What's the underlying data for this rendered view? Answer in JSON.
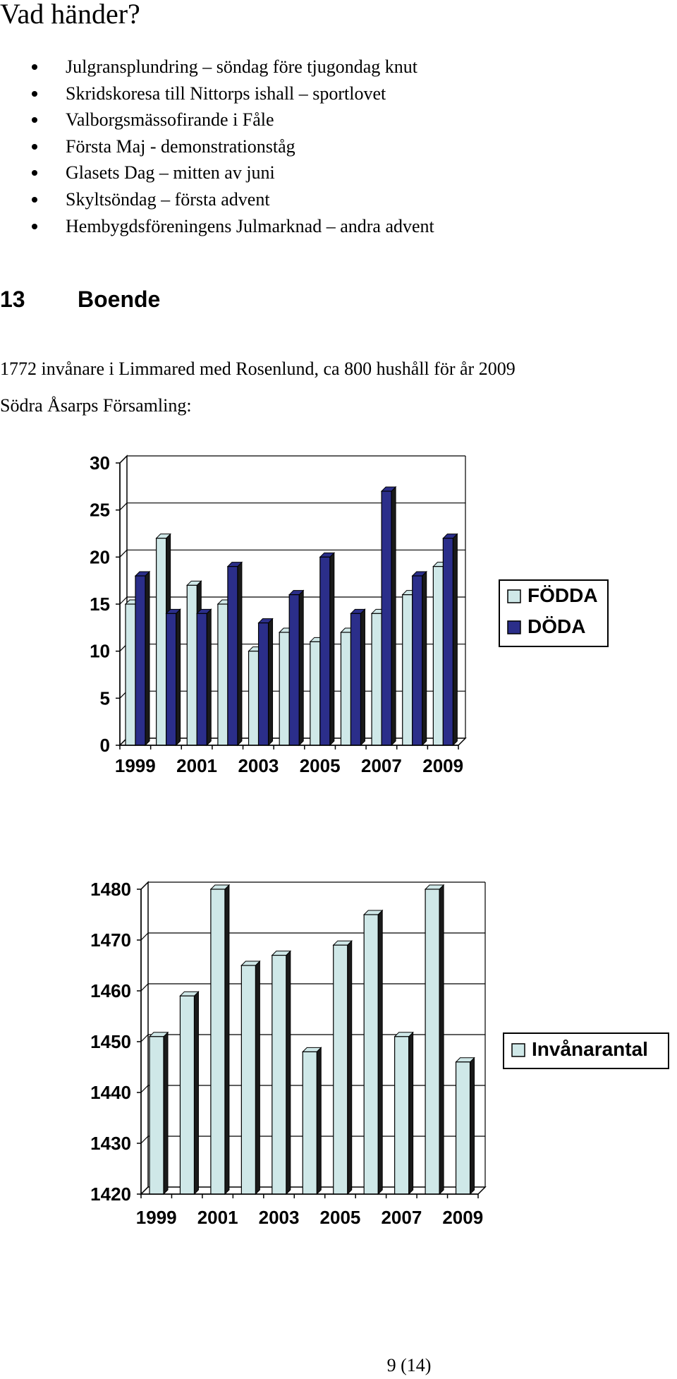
{
  "heading": "Vad händer?",
  "events": [
    "Julgransplundring – söndag före tjugondag knut",
    "Skridskoresa till Nittorps ishall – sportlovet",
    "Valborgsmässofirande i Fåle",
    "Första Maj - demonstrationståg",
    "Glasets Dag – mitten av juni",
    "Skyltsöndag – första advent",
    "Hembygdsföreningens Julmarknad – andra advent"
  ],
  "section": {
    "number": "13",
    "title": "Boende"
  },
  "paragraphs": [
    "1772 invånare i Limmared med Rosenlund, ca 800 hushåll för år 2009",
    "Södra Åsarps Församling:"
  ],
  "page_number": "9 (14)",
  "colors": {
    "light_bar": "#cfe8e8",
    "dark_bar": "#2b2e8a",
    "bar_side": "#1a1a1a"
  },
  "chart_data": [
    {
      "type": "bar",
      "x": [
        1999,
        2000,
        2001,
        2002,
        2003,
        2004,
        2005,
        2006,
        2007,
        2008,
        2009
      ],
      "tick_labels": [
        "1999",
        "2001",
        "2003",
        "2005",
        "2007",
        "2009"
      ],
      "y_ticks": [
        "0",
        "5",
        "10",
        "15",
        "20",
        "25",
        "30"
      ],
      "ylim": [
        0,
        30
      ],
      "series": [
        {
          "name": "FÖDDA",
          "values": [
            15,
            22,
            17,
            15,
            10,
            12,
            11,
            12,
            14,
            16,
            19
          ]
        },
        {
          "name": "DÖDA",
          "values": [
            18,
            14,
            14,
            19,
            13,
            16,
            20,
            14,
            27,
            18,
            22
          ]
        }
      ],
      "grid": true,
      "legend": "right"
    },
    {
      "type": "bar",
      "x": [
        1999,
        2000,
        2001,
        2002,
        2003,
        2004,
        2005,
        2006,
        2007,
        2008,
        2009
      ],
      "tick_labels": [
        "1999",
        "2001",
        "2003",
        "2005",
        "2007",
        "2009"
      ],
      "y_ticks": [
        "1420",
        "1430",
        "1440",
        "1450",
        "1460",
        "1470",
        "1480"
      ],
      "ylim": [
        1420,
        1480
      ],
      "series": [
        {
          "name": "Invånarantal",
          "values": [
            1451,
            1459,
            1480,
            1465,
            1467,
            1448,
            1469,
            1475,
            1451,
            1480,
            1446
          ]
        }
      ],
      "grid": true,
      "legend": "right"
    }
  ]
}
